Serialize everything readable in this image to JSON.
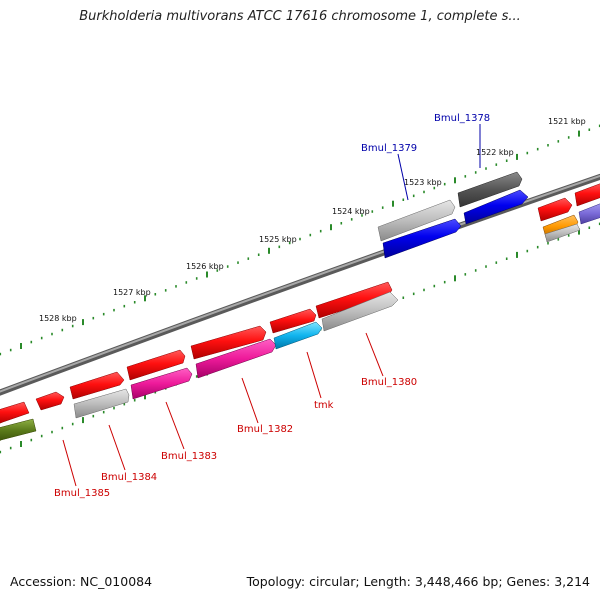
{
  "title": "Burkholderia multivorans ATCC 17616 chromosome 1, complete s...",
  "footer": {
    "accession": "Accession: NC_010084",
    "summary": "Topology: circular; Length: 3,448,466 bp; Genes: 3,214"
  },
  "colors": {
    "backbone": "#808080",
    "tick": "#2a8a2a",
    "label_red": "#cc0000",
    "label_blue": "#0000aa"
  },
  "scale_labels": [
    "1521 kbp",
    "1522 kbp",
    "1523 kbp",
    "1524 kbp",
    "1525 kbp",
    "1526 kbp",
    "1527 kbp",
    "1528 kbp"
  ],
  "genes": [
    {
      "name": "Bmul_1378",
      "color": "#0000aa"
    },
    {
      "name": "Bmul_1379",
      "color": "#0000aa"
    },
    {
      "name": "Bmul_1380",
      "color": "#cc0000"
    },
    {
      "name": "tmk",
      "color": "#cc0000"
    },
    {
      "name": "Bmul_1382",
      "color": "#cc0000"
    },
    {
      "name": "Bmul_1383",
      "color": "#cc0000"
    },
    {
      "name": "Bmul_1384",
      "color": "#cc0000"
    },
    {
      "name": "Bmul_1385",
      "color": "#cc0000"
    }
  ]
}
